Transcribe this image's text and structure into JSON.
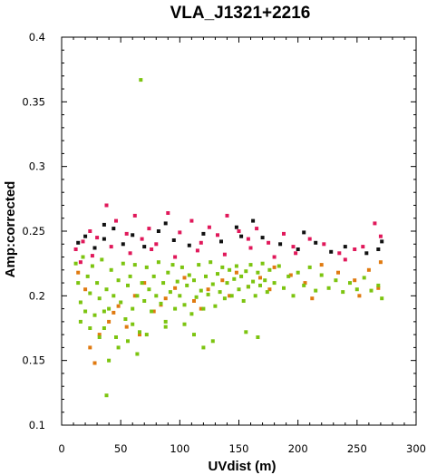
{
  "chart_data": {
    "type": "scatter",
    "title": "VLA_J1321+2216",
    "xlabel": "UVdist (m)",
    "ylabel": "Amp:corrected",
    "xlim": [
      0,
      300
    ],
    "ylim": [
      0.1,
      0.4
    ],
    "x_ticks": [
      0,
      50,
      100,
      150,
      200,
      250,
      300
    ],
    "y_ticks": [
      0.1,
      0.15,
      0.2,
      0.25,
      0.3,
      0.35,
      0.4
    ],
    "x_tick_labels": [
      "0",
      "50",
      "100",
      "150",
      "200",
      "250",
      "300"
    ],
    "y_tick_labels": [
      "0.1",
      "0.15",
      "0.2",
      "0.25",
      "0.3",
      "0.35",
      "0.4"
    ],
    "grid": false,
    "legend": "none",
    "series": [
      {
        "color": "#111111",
        "points": [
          [
            14,
            0.241
          ],
          [
            20,
            0.246
          ],
          [
            28,
            0.237
          ],
          [
            36,
            0.244
          ],
          [
            44,
            0.252
          ],
          [
            52,
            0.24
          ],
          [
            60,
            0.247
          ],
          [
            70,
            0.238
          ],
          [
            82,
            0.25
          ],
          [
            95,
            0.243
          ],
          [
            108,
            0.239
          ],
          [
            120,
            0.248
          ],
          [
            135,
            0.242
          ],
          [
            148,
            0.253
          ],
          [
            162,
            0.258
          ],
          [
            170,
            0.245
          ],
          [
            185,
            0.24
          ],
          [
            200,
            0.236
          ],
          [
            205,
            0.249
          ],
          [
            215,
            0.241
          ],
          [
            228,
            0.234
          ],
          [
            240,
            0.238
          ],
          [
            258,
            0.233
          ],
          [
            268,
            0.236
          ],
          [
            271,
            0.242
          ],
          [
            36,
            0.255
          ],
          [
            88,
            0.256
          ],
          [
            152,
            0.246
          ]
        ]
      },
      {
        "color": "#e0185a",
        "points": [
          [
            12,
            0.236
          ],
          [
            18,
            0.242
          ],
          [
            24,
            0.25
          ],
          [
            30,
            0.245
          ],
          [
            38,
            0.27
          ],
          [
            46,
            0.258
          ],
          [
            55,
            0.248
          ],
          [
            62,
            0.262
          ],
          [
            68,
            0.244
          ],
          [
            74,
            0.252
          ],
          [
            80,
            0.24
          ],
          [
            90,
            0.264
          ],
          [
            100,
            0.249
          ],
          [
            110,
            0.258
          ],
          [
            118,
            0.241
          ],
          [
            125,
            0.253
          ],
          [
            132,
            0.247
          ],
          [
            140,
            0.262
          ],
          [
            150,
            0.25
          ],
          [
            158,
            0.244
          ],
          [
            165,
            0.252
          ],
          [
            175,
            0.241
          ],
          [
            188,
            0.248
          ],
          [
            196,
            0.238
          ],
          [
            210,
            0.244
          ],
          [
            222,
            0.24
          ],
          [
            235,
            0.233
          ],
          [
            248,
            0.236
          ],
          [
            255,
            0.238
          ],
          [
            265,
            0.256
          ],
          [
            270,
            0.246
          ],
          [
            16,
            0.226
          ],
          [
            26,
            0.231
          ],
          [
            42,
            0.238
          ],
          [
            58,
            0.233
          ],
          [
            76,
            0.236
          ],
          [
            96,
            0.23
          ],
          [
            115,
            0.235
          ],
          [
            138,
            0.232
          ],
          [
            160,
            0.237
          ],
          [
            180,
            0.23
          ],
          [
            198,
            0.233
          ],
          [
            240,
            0.228
          ]
        ]
      },
      {
        "color": "#e07a10",
        "points": [
          [
            14,
            0.218
          ],
          [
            20,
            0.205
          ],
          [
            28,
            0.148
          ],
          [
            32,
            0.17
          ],
          [
            40,
            0.18
          ],
          [
            48,
            0.192
          ],
          [
            55,
            0.176
          ],
          [
            62,
            0.2
          ],
          [
            70,
            0.21
          ],
          [
            78,
            0.188
          ],
          [
            88,
            0.198
          ],
          [
            96,
            0.206
          ],
          [
            104,
            0.214
          ],
          [
            112,
            0.196
          ],
          [
            124,
            0.205
          ],
          [
            136,
            0.212
          ],
          [
            148,
            0.218
          ],
          [
            158,
            0.207
          ],
          [
            168,
            0.214
          ],
          [
            180,
            0.222
          ],
          [
            194,
            0.216
          ],
          [
            206,
            0.21
          ],
          [
            220,
            0.224
          ],
          [
            234,
            0.218
          ],
          [
            248,
            0.212
          ],
          [
            260,
            0.22
          ],
          [
            268,
            0.206
          ],
          [
            24,
            0.16
          ],
          [
            44,
            0.187
          ],
          [
            66,
            0.17
          ],
          [
            84,
            0.193
          ],
          [
            118,
            0.19
          ],
          [
            142,
            0.2
          ],
          [
            176,
            0.205
          ],
          [
            212,
            0.198
          ],
          [
            252,
            0.2
          ],
          [
            270,
            0.226
          ]
        ]
      },
      {
        "color": "#7cc410",
        "points": [
          [
            67,
            0.367
          ],
          [
            38,
            0.123
          ],
          [
            12,
            0.225
          ],
          [
            14,
            0.21
          ],
          [
            16,
            0.195
          ],
          [
            18,
            0.23
          ],
          [
            20,
            0.188
          ],
          [
            22,
            0.215
          ],
          [
            24,
            0.202
          ],
          [
            26,
            0.223
          ],
          [
            28,
            0.185
          ],
          [
            30,
            0.21
          ],
          [
            32,
            0.198
          ],
          [
            34,
            0.228
          ],
          [
            36,
            0.175
          ],
          [
            38,
            0.205
          ],
          [
            40,
            0.19
          ],
          [
            42,
            0.22
          ],
          [
            44,
            0.2
          ],
          [
            46,
            0.168
          ],
          [
            48,
            0.212
          ],
          [
            50,
            0.195
          ],
          [
            52,
            0.225
          ],
          [
            54,
            0.182
          ],
          [
            56,
            0.208
          ],
          [
            58,
            0.215
          ],
          [
            60,
            0.19
          ],
          [
            62,
            0.224
          ],
          [
            64,
            0.2
          ],
          [
            66,
            0.172
          ],
          [
            68,
            0.21
          ],
          [
            70,
            0.196
          ],
          [
            72,
            0.222
          ],
          [
            74,
            0.205
          ],
          [
            76,
            0.188
          ],
          [
            78,
            0.215
          ],
          [
            80,
            0.2
          ],
          [
            82,
            0.226
          ],
          [
            84,
            0.194
          ],
          [
            86,
            0.21
          ],
          [
            88,
            0.18
          ],
          [
            90,
            0.218
          ],
          [
            92,
            0.203
          ],
          [
            94,
            0.224
          ],
          [
            96,
            0.19
          ],
          [
            98,
            0.211
          ],
          [
            100,
            0.2
          ],
          [
            102,
            0.222
          ],
          [
            104,
            0.193
          ],
          [
            106,
            0.208
          ],
          [
            108,
            0.216
          ],
          [
            110,
            0.186
          ],
          [
            112,
            0.212
          ],
          [
            114,
            0.199
          ],
          [
            116,
            0.224
          ],
          [
            118,
            0.204
          ],
          [
            120,
            0.19
          ],
          [
            122,
            0.215
          ],
          [
            124,
            0.201
          ],
          [
            126,
            0.226
          ],
          [
            128,
            0.209
          ],
          [
            130,
            0.192
          ],
          [
            132,
            0.217
          ],
          [
            134,
            0.203
          ],
          [
            136,
            0.222
          ],
          [
            138,
            0.198
          ],
          [
            140,
            0.21
          ],
          [
            142,
            0.22
          ],
          [
            144,
            0.2
          ],
          [
            146,
            0.213
          ],
          [
            148,
            0.223
          ],
          [
            150,
            0.205
          ],
          [
            152,
            0.215
          ],
          [
            154,
            0.196
          ],
          [
            156,
            0.219
          ],
          [
            158,
            0.207
          ],
          [
            160,
            0.224
          ],
          [
            162,
            0.211
          ],
          [
            164,
            0.2
          ],
          [
            166,
            0.218
          ],
          [
            168,
            0.208
          ],
          [
            170,
            0.225
          ],
          [
            172,
            0.212
          ],
          [
            174,
            0.203
          ],
          [
            176,
            0.22
          ],
          [
            180,
            0.21
          ],
          [
            184,
            0.223
          ],
          [
            188,
            0.206
          ],
          [
            192,
            0.215
          ],
          [
            196,
            0.2
          ],
          [
            200,
            0.218
          ],
          [
            205,
            0.208
          ],
          [
            210,
            0.222
          ],
          [
            215,
            0.204
          ],
          [
            220,
            0.216
          ],
          [
            226,
            0.206
          ],
          [
            232,
            0.212
          ],
          [
            238,
            0.203
          ],
          [
            244,
            0.21
          ],
          [
            250,
            0.205
          ],
          [
            256,
            0.214
          ],
          [
            262,
            0.204
          ],
          [
            268,
            0.208
          ],
          [
            271,
            0.198
          ],
          [
            16,
            0.18
          ],
          [
            24,
            0.175
          ],
          [
            32,
            0.168
          ],
          [
            48,
            0.16
          ],
          [
            56,
            0.165
          ],
          [
            64,
            0.155
          ],
          [
            72,
            0.17
          ],
          [
            40,
            0.15
          ],
          [
            36,
            0.188
          ],
          [
            88,
            0.176
          ],
          [
            112,
            0.17
          ],
          [
            128,
            0.165
          ],
          [
            156,
            0.172
          ],
          [
            166,
            0.168
          ],
          [
            120,
            0.16
          ],
          [
            104,
            0.178
          ],
          [
            60,
            0.178
          ]
        ]
      }
    ]
  }
}
